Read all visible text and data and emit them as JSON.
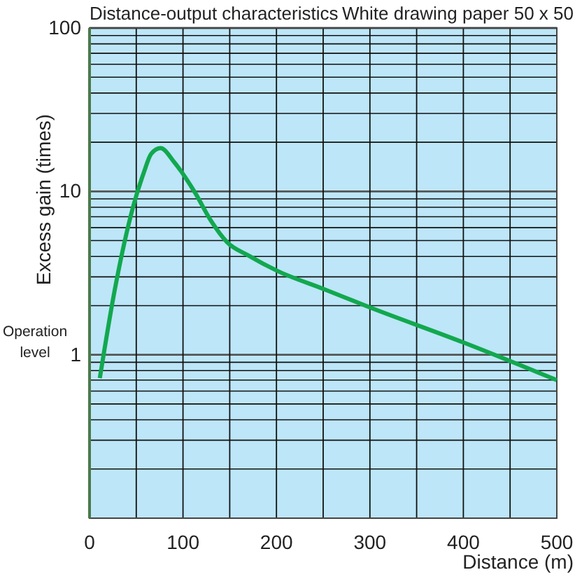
{
  "chart_data": {
    "type": "line",
    "title": "Distance-output characteristics",
    "subtitle": "White drawing paper 50 x 50",
    "xlabel": "Distance (m)",
    "ylabel": "Excess gain (times)",
    "annotations": [
      "Operation level"
    ],
    "log": "y",
    "grid": true,
    "marker": "none",
    "line_style": "solid",
    "xlim": [
      0,
      500
    ],
    "xticks": [
      0,
      {
        "value": 50,
        "label": null
      },
      100,
      {
        "value": 150,
        "label": null
      },
      200,
      {
        "value": 250,
        "label": null
      },
      300,
      {
        "value": 350,
        "label": null
      },
      400,
      {
        "value": 450,
        "label": null
      },
      500
    ],
    "ylim": [
      0.1,
      100
    ],
    "yticks": [
      {
        "value": 0.1,
        "label": null
      },
      {
        "value": 0.2,
        "label": null
      },
      {
        "value": 0.3,
        "label": null
      },
      {
        "value": 0.4,
        "label": null
      },
      {
        "value": 0.5,
        "label": null
      },
      {
        "value": 0.6,
        "label": null
      },
      {
        "value": 0.7,
        "label": null
      },
      {
        "value": 0.8,
        "label": null
      },
      {
        "value": 0.9,
        "label": null
      },
      1,
      {
        "value": 2,
        "label": null
      },
      {
        "value": 3,
        "label": null
      },
      {
        "value": 4,
        "label": null
      },
      {
        "value": 5,
        "label": null
      },
      {
        "value": 6,
        "label": null
      },
      {
        "value": 7,
        "label": null
      },
      {
        "value": 8,
        "label": null
      },
      {
        "value": 9,
        "label": null
      },
      10,
      {
        "value": 20,
        "label": null
      },
      {
        "value": 30,
        "label": null
      },
      {
        "value": 40,
        "label": null
      },
      {
        "value": 50,
        "label": null
      },
      {
        "value": 60,
        "label": null
      },
      {
        "value": 70,
        "label": null
      },
      {
        "value": 80,
        "label": null
      },
      {
        "value": 90,
        "label": null
      },
      100
    ],
    "series": [
      {
        "color": "#12a84f",
        "x": [
          11,
          27,
          47,
          58,
          66,
          76,
          91,
          113,
          130,
          147,
          170,
          201,
          251,
          300,
          400,
          500
        ],
        "values": [
          0.72,
          2.5,
          8.2,
          13,
          17,
          18.4,
          15,
          9.8,
          6.6,
          4.9,
          4.05,
          3.26,
          2.52,
          1.95,
          1.19,
          0.7
        ]
      }
    ]
  }
}
